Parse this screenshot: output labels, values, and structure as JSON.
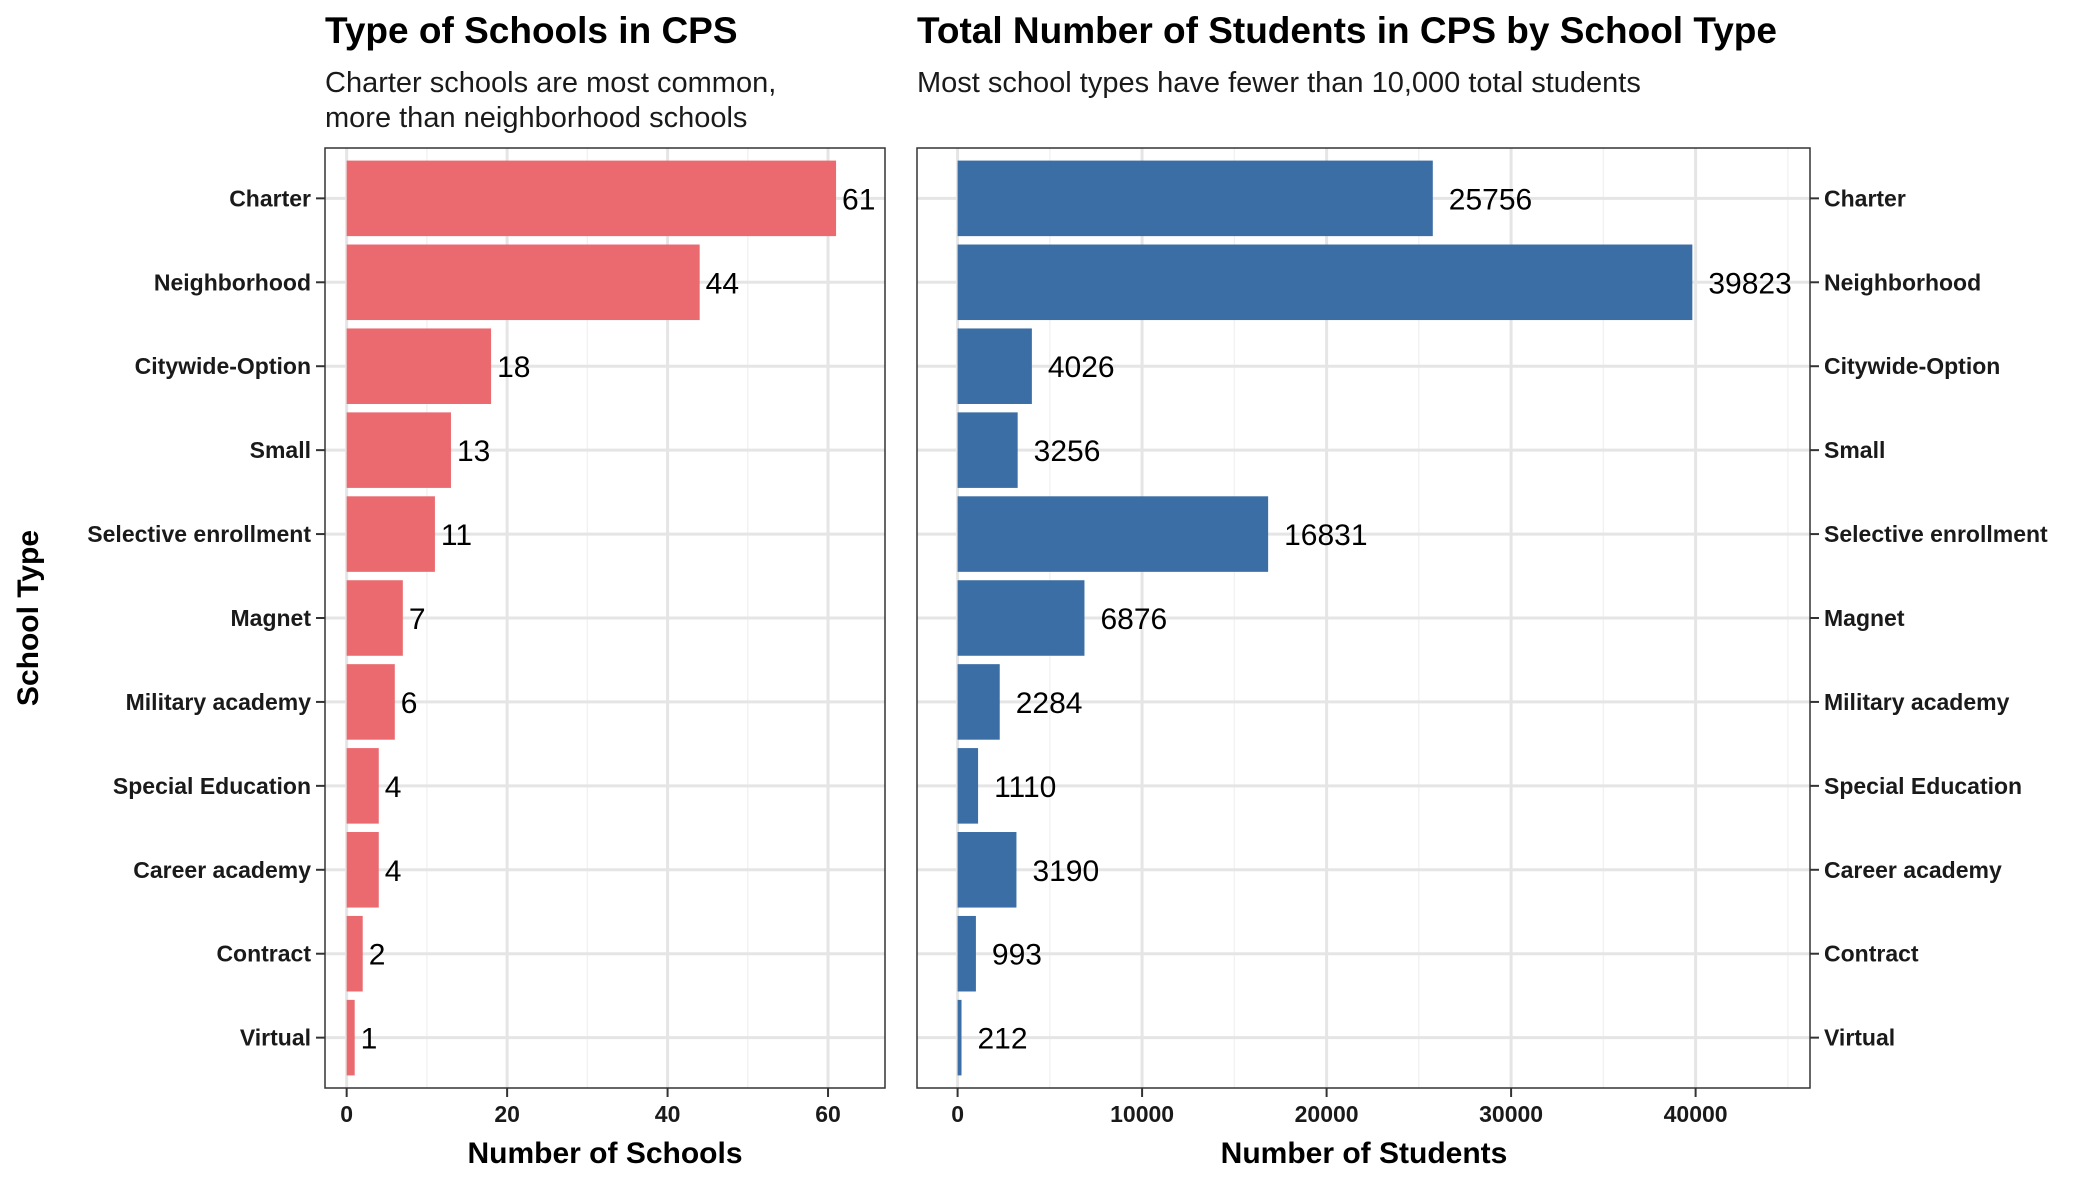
{
  "chart_data": [
    {
      "type": "bar",
      "orientation": "horizontal",
      "title": "Type of Schools in CPS",
      "subtitle_lines": [
        "Charter schools are most common,",
        "more than neighborhood schools"
      ],
      "xlabel": "Number of Schools",
      "ylabel": "School Type",
      "categories": [
        "Charter",
        "Neighborhood",
        "Citywide-Option",
        "Small",
        "Selective enrollment",
        "Magnet",
        "Military academy",
        "Special Education",
        "Career academy",
        "Contract",
        "Virtual"
      ],
      "values": [
        61,
        44,
        18,
        13,
        11,
        7,
        6,
        4,
        4,
        2,
        1
      ],
      "value_labels": [
        "61",
        "44",
        "18",
        "13",
        "11",
        "7",
        "6",
        "4",
        "4",
        "2",
        "1"
      ],
      "xlim": [
        -2.7,
        67.1
      ],
      "xticks": [
        0,
        20,
        40,
        60
      ],
      "xtick_labels": [
        "0",
        "20",
        "40",
        "60"
      ],
      "category_axis": "left",
      "grid": true,
      "legend": "none",
      "color": "#ea6a6f"
    },
    {
      "type": "bar",
      "orientation": "horizontal",
      "title": "Total Number of Students in CPS by School Type",
      "subtitle_lines": [
        "Most school types have fewer than 10,000 total students"
      ],
      "xlabel": "Number of Students",
      "ylabel": "",
      "categories": [
        "Charter",
        "Neighborhood",
        "Citywide-Option",
        "Small",
        "Selective enrollment",
        "Magnet",
        "Military academy",
        "Special Education",
        "Career academy",
        "Contract",
        "Virtual"
      ],
      "values": [
        25756,
        39823,
        4026,
        3256,
        16831,
        6876,
        2284,
        1110,
        3190,
        993,
        212
      ],
      "value_labels": [
        "25756",
        "39823",
        "4026",
        "3256",
        "16831",
        "6876",
        "2284",
        "1110",
        "3190",
        "993",
        "212"
      ],
      "xlim": [
        -2200,
        46200
      ],
      "xticks": [
        0,
        10000,
        20000,
        30000,
        40000
      ],
      "xtick_labels": [
        "0",
        "10000",
        "20000",
        "30000",
        "40000"
      ],
      "category_axis": "right",
      "grid": true,
      "legend": "none",
      "color": "#3b6ea5"
    }
  ]
}
